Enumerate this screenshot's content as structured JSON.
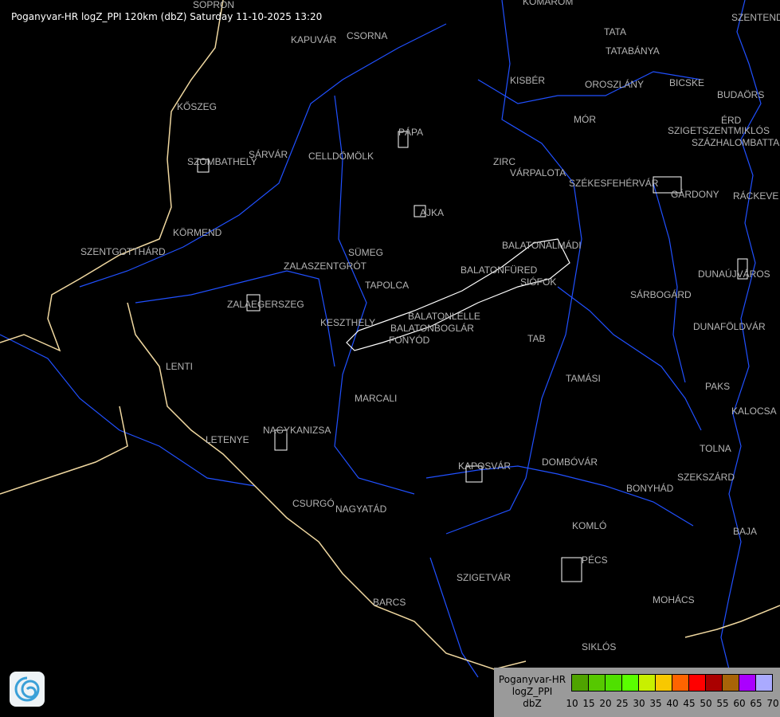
{
  "header": {
    "title": "Poganyvar-HR logZ_PPI 120km (dbZ) Saturday 11-10-2025 13:20"
  },
  "cities": [
    "SOPRON",
    "KOMÁROM",
    "SZENTENDRE",
    "KAPUVÁR",
    "CSORNA",
    "TATA",
    "TATABÁNYA",
    "KISBÉR",
    "OROSZLÁNY",
    "BICSKE",
    "BUDAÖRS",
    "KŐSZEG",
    "ÉRD",
    "MÓR",
    "PÁPA",
    "SZIGETSZENTMIKLÓS",
    "SZÁZHALOMBATTA",
    "SÁRVÁR",
    "CELLDÖMÖLK",
    "SZOMBATHELY",
    "ZIRC",
    "VÁRPALOTA",
    "SZÉKESFEHÉRVÁR",
    "GÁRDONY",
    "RÁCKEVE",
    "AJKA",
    "KÖRMEND",
    "BALATONALMÁDI",
    "SZENTGOTTHÁRD",
    "SÜMEG",
    "ZALASZENTGRÓT",
    "BALATONFÜRED",
    "SIÓFOK",
    "DUNAÚJVÁROS",
    "TAPOLCA",
    "SÁRBOGÁRD",
    "ZALAEGERSZEG",
    "BALATONLELLE",
    "BALATONBOGLÁR",
    "KESZTHELY",
    "FONYÓD",
    "DUNAFÖLDVÁR",
    "TAB",
    "LENTI",
    "TAMÁSI",
    "PAKS",
    "MARCALI",
    "KALOCSA",
    "NAGYKANIZSA",
    "LETENYE",
    "TOLNA",
    "KAPOSVÁR",
    "DOMBÓVÁR",
    "SZEKSZÁRD",
    "BONYHÁD",
    "CSURGÓ",
    "NAGYATÁD",
    "KOMLÓ",
    "BAJA",
    "PÉCS",
    "SZIGETVÁR",
    "MOHÁCS",
    "BARCS",
    "SIKLÓS"
  ],
  "legend": {
    "lines": [
      "Poganyvar-HR",
      "logZ_PPI",
      "dbZ"
    ],
    "colors": [
      "#4fa300",
      "#56c800",
      "#4fe000",
      "#5aff00",
      "#c8f000",
      "#f8c800",
      "#ff6400",
      "#ff0000",
      "#aa0000",
      "#a86408",
      "#aa00ff",
      "#aaaaff"
    ],
    "ticks": [
      "10",
      "15",
      "20",
      "25",
      "30",
      "35",
      "40",
      "45",
      "50",
      "55",
      "60",
      "65",
      "70"
    ]
  },
  "colors": {
    "background": "#000000",
    "river": "#2050ff",
    "border": "#f0d8a0",
    "lake": "#ffffff",
    "label": "#b4b4b4"
  },
  "logo_icon": "swirl-logo-icon"
}
